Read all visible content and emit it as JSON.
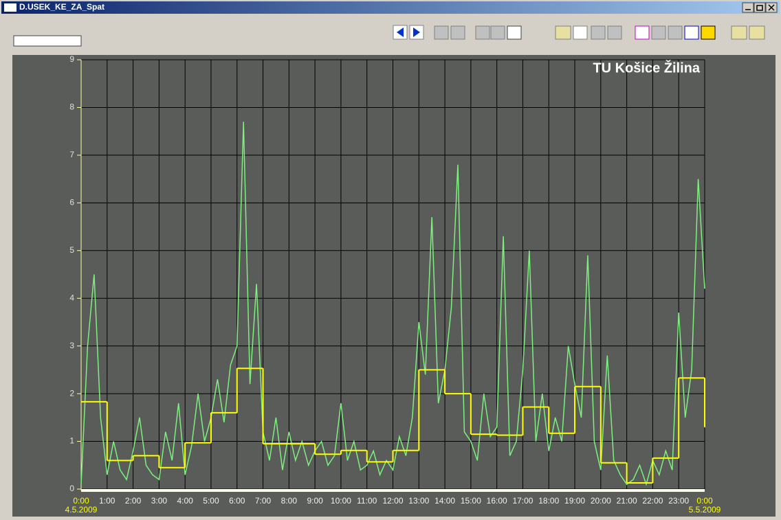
{
  "window": {
    "title": "D.USEK_KE_ZA_Spat"
  },
  "chart_data": {
    "type": "line",
    "annotation": "TU Košice Žilina",
    "xlim": [
      0,
      24
    ],
    "ylim": [
      0,
      9
    ],
    "yticks": [
      0,
      1,
      2,
      3,
      4,
      5,
      6,
      7,
      8,
      9
    ],
    "xticks": [
      {
        "value": 0,
        "label": "0:00"
      },
      {
        "value": 1,
        "label": "1:00"
      },
      {
        "value": 2,
        "label": "2:00"
      },
      {
        "value": 3,
        "label": "3:00"
      },
      {
        "value": 4,
        "label": "4:00"
      },
      {
        "value": 5,
        "label": "5:00"
      },
      {
        "value": 6,
        "label": "6:00"
      },
      {
        "value": 7,
        "label": "7:00"
      },
      {
        "value": 8,
        "label": "8:00"
      },
      {
        "value": 9,
        "label": "9:00"
      },
      {
        "value": 10,
        "label": "10:00"
      },
      {
        "value": 11,
        "label": "11:00"
      },
      {
        "value": 12,
        "label": "12:00"
      },
      {
        "value": 13,
        "label": "13:00"
      },
      {
        "value": 14,
        "label": "14:00"
      },
      {
        "value": 15,
        "label": "15:00"
      },
      {
        "value": 16,
        "label": "16:00"
      },
      {
        "value": 17,
        "label": "17:00"
      },
      {
        "value": 18,
        "label": "18:00"
      },
      {
        "value": 19,
        "label": "19:00"
      },
      {
        "value": 20,
        "label": "20:00"
      },
      {
        "value": 21,
        "label": "21:00"
      },
      {
        "value": 22,
        "label": "22:00"
      },
      {
        "value": 23,
        "label": "23:00"
      },
      {
        "value": 24,
        "label": "0:00"
      }
    ],
    "dates": [
      {
        "x": 0,
        "label": "4.5.2009"
      },
      {
        "x": 24,
        "label": "5.5.2009"
      }
    ],
    "grid": true,
    "series": [
      {
        "color": "#7ef07e",
        "step": false,
        "x": [
          0,
          0.25,
          0.5,
          0.75,
          1,
          1.25,
          1.5,
          1.75,
          2,
          2.25,
          2.5,
          2.75,
          3,
          3.25,
          3.5,
          3.75,
          4,
          4.25,
          4.5,
          4.75,
          5,
          5.25,
          5.5,
          5.75,
          6,
          6.25,
          6.5,
          6.75,
          7,
          7.25,
          7.5,
          7.75,
          8,
          8.25,
          8.5,
          8.75,
          9,
          9.25,
          9.5,
          9.75,
          10,
          10.25,
          10.5,
          10.75,
          11,
          11.25,
          11.5,
          11.75,
          12,
          12.25,
          12.5,
          12.75,
          13,
          13.25,
          13.5,
          13.75,
          14,
          14.25,
          14.5,
          14.75,
          15,
          15.25,
          15.5,
          15.75,
          16,
          16.25,
          16.5,
          16.75,
          17,
          17.25,
          17.5,
          17.75,
          18,
          18.25,
          18.5,
          18.75,
          19,
          19.25,
          19.5,
          19.75,
          20,
          20.25,
          20.5,
          20.75,
          21,
          21.25,
          21.5,
          21.75,
          22,
          22.25,
          22.5,
          22.75,
          23,
          23.25,
          23.5,
          23.75,
          24
        ],
        "values": [
          0.1,
          3.0,
          4.5,
          1.5,
          0.3,
          1.0,
          0.4,
          0.2,
          0.8,
          1.5,
          0.5,
          0.3,
          0.2,
          1.2,
          0.6,
          1.8,
          0.3,
          0.9,
          2.0,
          1.0,
          1.5,
          2.3,
          1.4,
          2.6,
          3.0,
          7.7,
          2.2,
          4.3,
          1.2,
          0.6,
          1.5,
          0.4,
          1.2,
          0.6,
          1.0,
          0.5,
          0.8,
          1.0,
          0.5,
          0.7,
          1.8,
          0.6,
          1.0,
          0.4,
          0.5,
          0.8,
          0.3,
          0.6,
          0.4,
          1.1,
          0.7,
          1.5,
          3.5,
          2.4,
          5.7,
          1.8,
          2.5,
          3.8,
          6.8,
          1.2,
          1.0,
          0.6,
          2.0,
          1.1,
          1.3,
          5.3,
          0.7,
          1.0,
          2.5,
          5.0,
          1.0,
          2.0,
          0.8,
          1.5,
          1.0,
          3.0,
          2.2,
          1.5,
          4.9,
          1.0,
          0.4,
          2.8,
          0.6,
          0.3,
          0.1,
          0.2,
          0.5,
          0.1,
          0.6,
          0.3,
          0.8,
          0.4,
          3.7,
          1.5,
          2.5,
          6.5,
          4.2
        ]
      },
      {
        "color": "#ffff00",
        "step": true,
        "x": [
          0,
          1,
          2,
          3,
          4,
          5,
          6,
          7,
          8,
          9,
          10,
          11,
          12,
          13,
          14,
          15,
          16,
          17,
          18,
          19,
          20,
          21,
          22,
          23,
          24
        ],
        "values": [
          1.83,
          0.6,
          0.7,
          0.45,
          0.97,
          1.6,
          2.53,
          0.95,
          0.95,
          0.73,
          0.81,
          0.57,
          0.81,
          2.5,
          2.0,
          1.15,
          1.13,
          1.72,
          1.17,
          2.15,
          0.55,
          0.13,
          0.65,
          2.33,
          1.3
        ]
      }
    ]
  }
}
